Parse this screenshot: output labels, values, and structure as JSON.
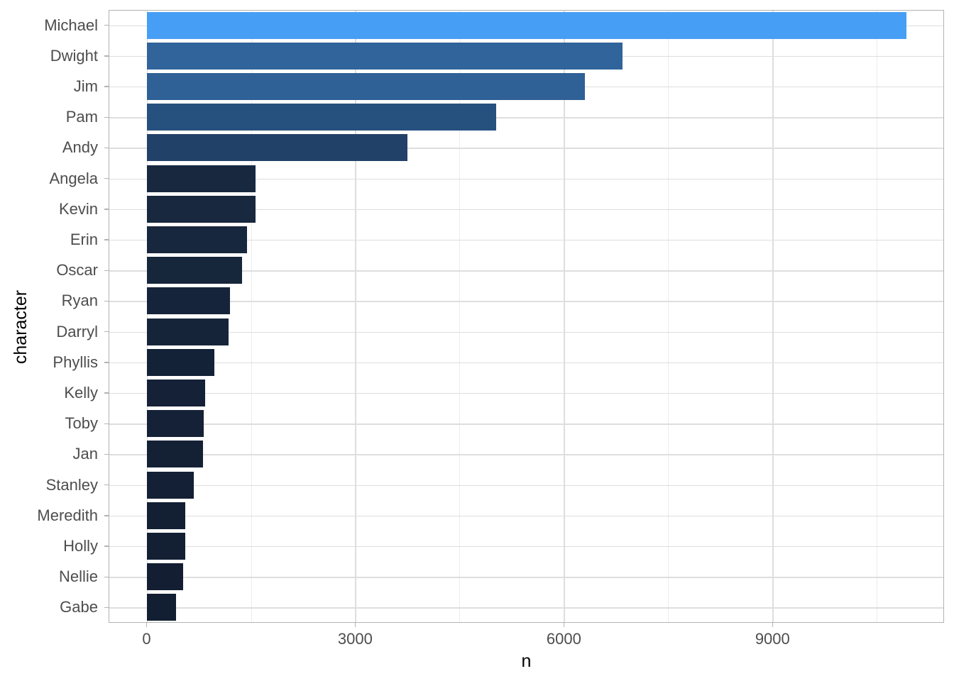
{
  "chart_data": {
    "type": "bar",
    "orientation": "horizontal",
    "title": "",
    "xlabel": "n",
    "ylabel": "character",
    "categories": [
      "Michael",
      "Dwight",
      "Jim",
      "Pam",
      "Andy",
      "Angela",
      "Kevin",
      "Erin",
      "Oscar",
      "Ryan",
      "Darryl",
      "Phyllis",
      "Kelly",
      "Toby",
      "Jan",
      "Stanley",
      "Meredith",
      "Holly",
      "Nellie",
      "Gabe"
    ],
    "values": [
      10921,
      6847,
      6303,
      5031,
      3754,
      1569,
      1564,
      1440,
      1368,
      1198,
      1182,
      972,
      841,
      818,
      810,
      678,
      559,
      555,
      528,
      427
    ],
    "bar_colors": [
      "#479ff5",
      "#30649b",
      "#2f6196",
      "#26517f",
      "#224168",
      "#18293f",
      "#18283e",
      "#17273d",
      "#16263b",
      "#15243a",
      "#152439",
      "#142238",
      "#142136",
      "#142136",
      "#142135",
      "#132035",
      "#131f33",
      "#131f33",
      "#131e33",
      "#121e31"
    ],
    "x_ticks": [
      0,
      3000,
      6000,
      9000
    ],
    "x_tick_labels": [
      "0",
      "3000",
      "6000",
      "9000"
    ],
    "x_minor_ticks": [
      1500,
      4500,
      7500,
      10500
    ],
    "xlim": [
      -546,
      11467
    ],
    "grid": "on",
    "legend": "none",
    "theme_colors": {
      "panel_background": "#ffffff",
      "panel_border": "#b3b3b3",
      "grid_major": "#dedede",
      "grid_minor": "#ececec",
      "tick_mark": "#b3b3b3",
      "tick_label_text": "#4d4d4d",
      "axis_title_text": "#000000",
      "gradient_low": "#132b43",
      "gradient_high": "#56b1f7"
    }
  }
}
